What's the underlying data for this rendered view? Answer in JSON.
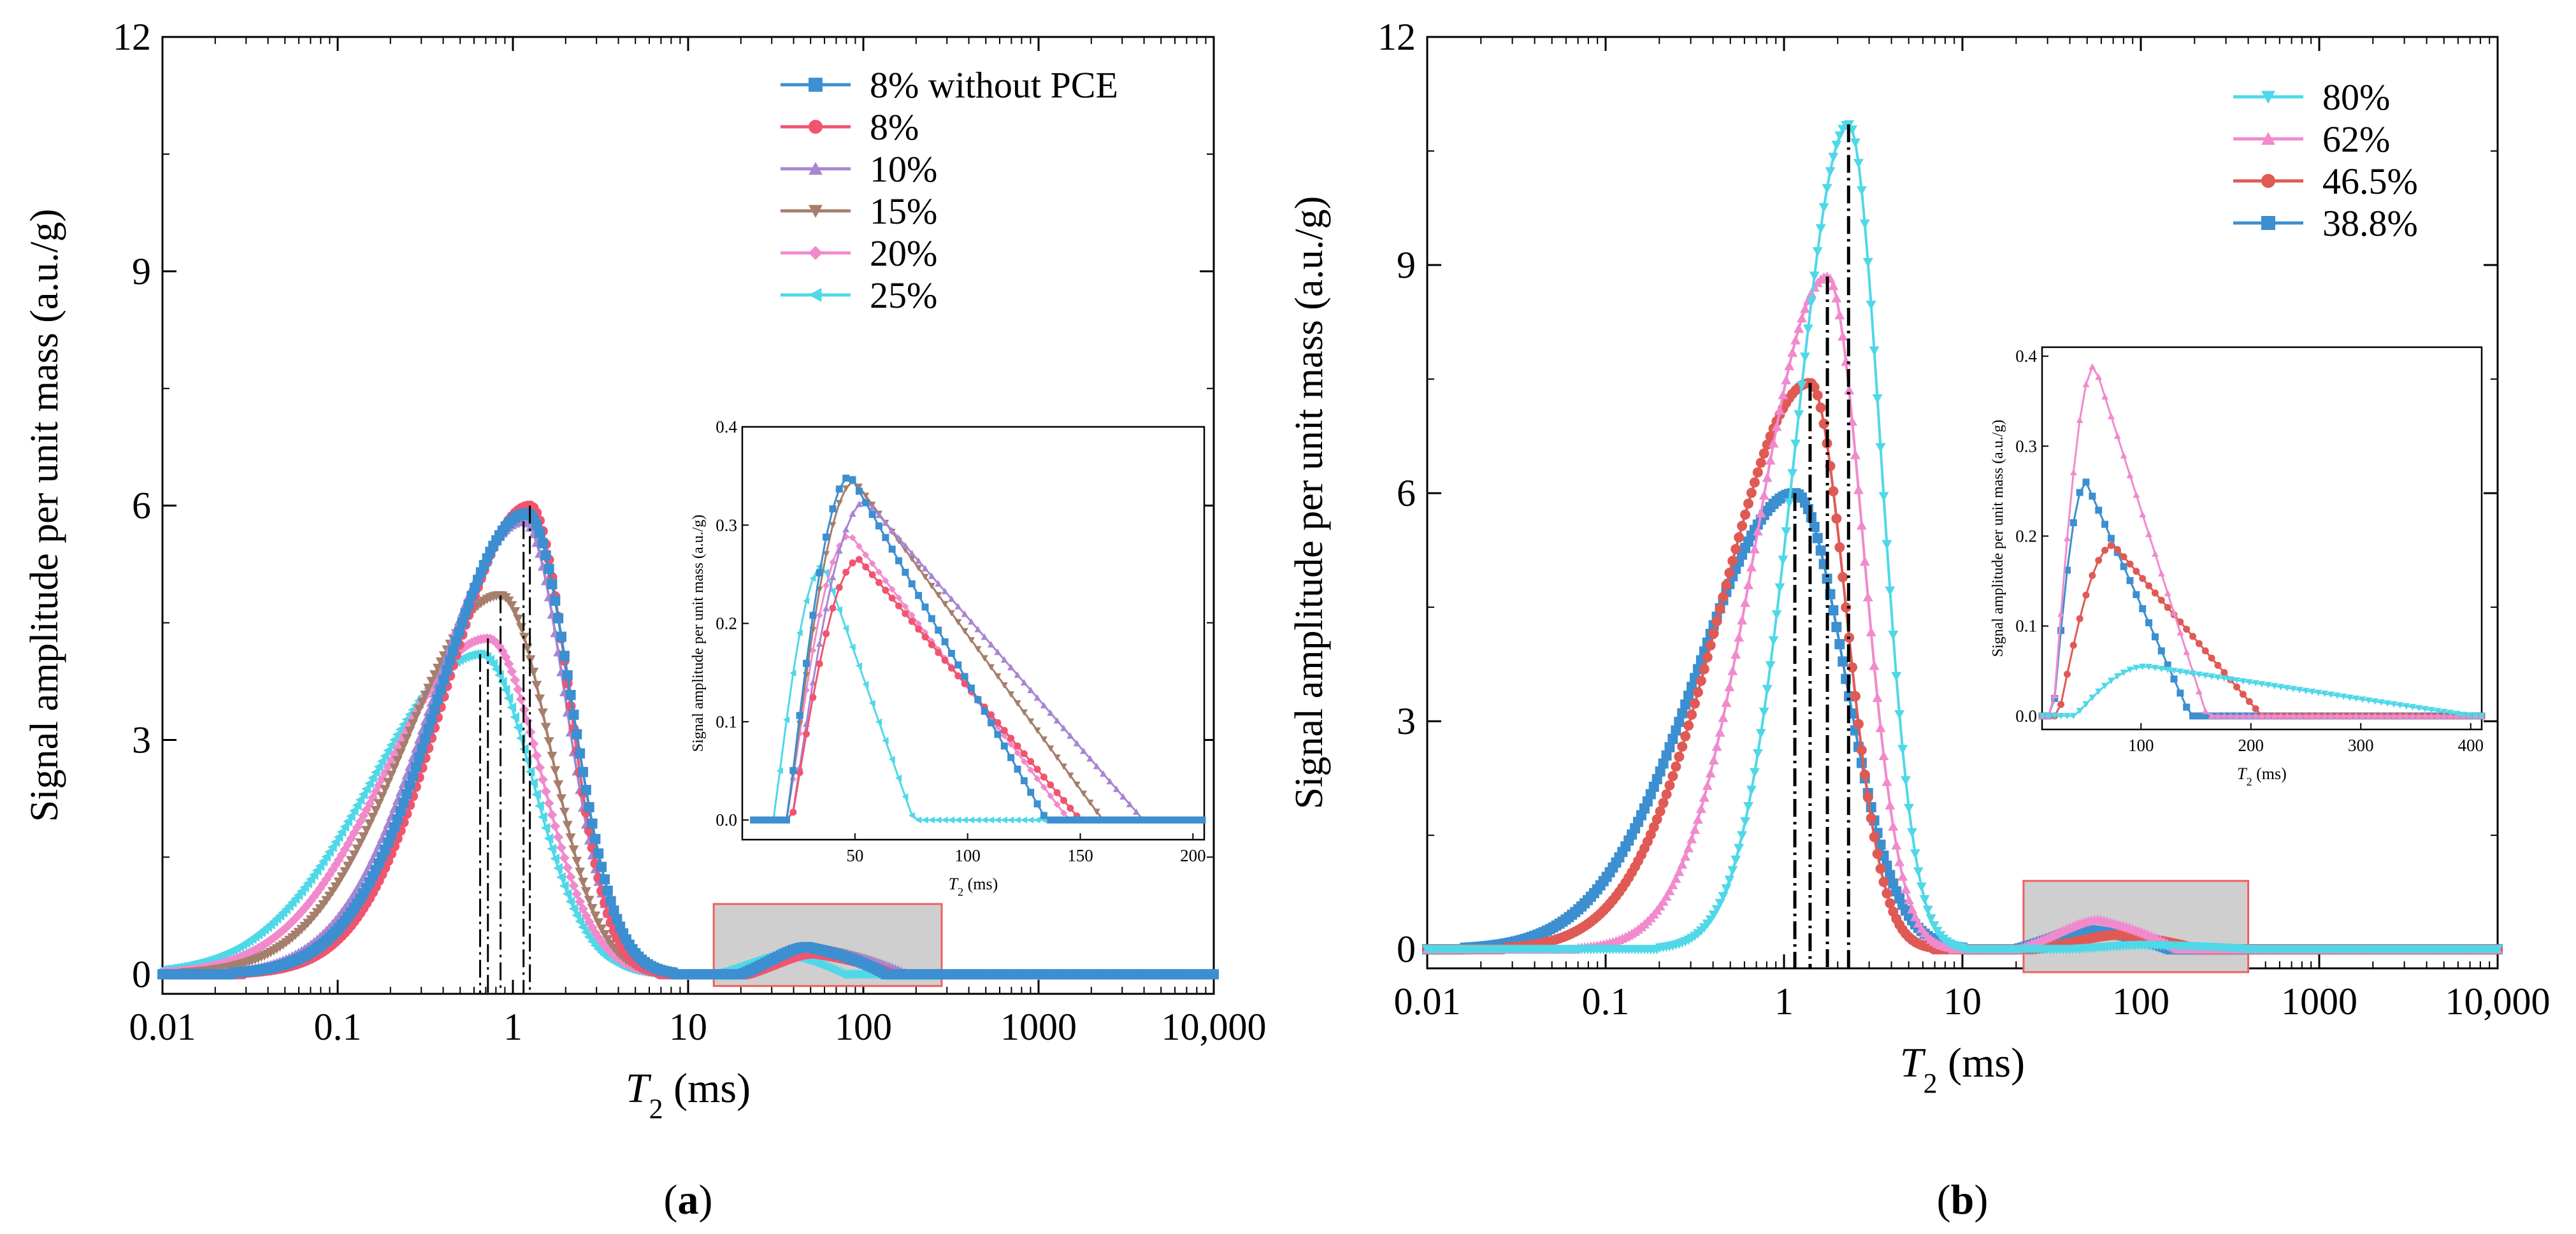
{
  "colors": {
    "blue": "#3C8FD0",
    "red": "#F0556F",
    "purple": "#A886D2",
    "brown": "#A67E6C",
    "pink": "#F08ACD",
    "cyan": "#4FD8E8",
    "red_b": "#E05A55"
  },
  "chart_data": [
    {
      "id": "a",
      "type": "line",
      "caption": "(a)",
      "caption_letter": "a",
      "xscale": "log",
      "xlim": [
        0.01,
        10000
      ],
      "ylim": [
        -0.25,
        12
      ],
      "xticks": [
        0.01,
        0.1,
        1,
        10,
        100,
        1000,
        10000
      ],
      "xtick_labels": [
        "0.01",
        "0.1",
        "1",
        "10",
        "100",
        "1000",
        "10,000"
      ],
      "yticks": [
        0,
        3,
        6,
        9,
        12
      ],
      "ytick_labels": [
        "0",
        "3",
        "6",
        "9",
        "12"
      ],
      "xlabel_var": "T",
      "xlabel_sub": "2",
      "xlabel_unit": " (ms)",
      "ylabel": "Signal amplitude per unit mass (a.u./g)",
      "legend_position": "top-right",
      "series": [
        {
          "name": "8% without PCE",
          "color": "#3C8FD0",
          "marker": "square",
          "peak_x": 1.2,
          "peak_y": 5.9,
          "wl": 0.5,
          "wr": 0.25,
          "inset_peak_x": 48,
          "inset_peak_y": 0.35,
          "inset_start": 20,
          "inset_end": 135
        },
        {
          "name": "8%",
          "color": "#F0556F",
          "marker": "circle",
          "peak_x": 1.25,
          "peak_y": 6.0,
          "wl": 0.48,
          "wr": 0.22,
          "inset_peak_x": 52,
          "inset_peak_y": 0.265,
          "inset_start": 22,
          "inset_end": 150
        },
        {
          "name": "10%",
          "color": "#A886D2",
          "marker": "triangle-up",
          "peak_x": 1.15,
          "peak_y": 5.8,
          "wl": 0.52,
          "wr": 0.24,
          "inset_peak_x": 55,
          "inset_peak_y": 0.325,
          "inset_start": 22,
          "inset_end": 178
        },
        {
          "name": "15%",
          "color": "#A67E6C",
          "marker": "triangle-down",
          "peak_x": 0.85,
          "peak_y": 4.85,
          "wl": 0.55,
          "wr": 0.28,
          "inset_peak_x": 50,
          "inset_peak_y": 0.345,
          "inset_start": 20,
          "inset_end": 160
        },
        {
          "name": "20%",
          "color": "#F08ACD",
          "marker": "diamond",
          "peak_x": 0.72,
          "peak_y": 4.3,
          "wl": 0.58,
          "wr": 0.3,
          "inset_peak_x": 48,
          "inset_peak_y": 0.29,
          "inset_start": 20,
          "inset_end": 145
        },
        {
          "name": "25%",
          "color": "#4FD8E8",
          "marker": "triangle-left",
          "peak_x": 0.65,
          "peak_y": 4.1,
          "wl": 0.62,
          "wr": 0.3,
          "inset_peak_x": 36,
          "inset_peak_y": 0.26,
          "inset_start": 14,
          "inset_end": 76
        }
      ],
      "inset": {
        "xlim": [
          0,
          205
        ],
        "ylim": [
          -0.02,
          0.4
        ],
        "xticks": [
          50,
          100,
          150,
          200
        ],
        "xtick_labels": [
          "50",
          "100",
          "150",
          "200"
        ],
        "yticks": [
          0,
          0.1,
          0.2,
          0.3,
          0.4
        ],
        "ytick_labels": [
          "0.0",
          "0.1",
          "0.2",
          "0.3",
          "0.4"
        ],
        "xlabel_var": "T",
        "xlabel_sub": "2",
        "xlabel_unit": " (ms)",
        "ylabel": "Signal amplitude per unit mass (a.u./g)",
        "highlight_range_x": [
          14,
          280
        ],
        "highlight_range_y": [
          -0.15,
          0.9
        ]
      }
    },
    {
      "id": "b",
      "type": "line",
      "caption": "(b)",
      "caption_letter": "b",
      "xscale": "log",
      "xlim": [
        0.01,
        10000
      ],
      "ylim": [
        -0.25,
        12
      ],
      "xticks": [
        0.01,
        0.1,
        1,
        10,
        100,
        1000,
        10000
      ],
      "xtick_labels": [
        "0.01",
        "0.1",
        "1",
        "10",
        "100",
        "1000",
        "10,000"
      ],
      "yticks": [
        0,
        3,
        6,
        9,
        12
      ],
      "ytick_labels": [
        "0",
        "3",
        "6",
        "9",
        "12"
      ],
      "xlabel_var": "T",
      "xlabel_sub": "2",
      "xlabel_unit": " (ms)",
      "ylabel": "Signal amplitude per unit mass (a.u./g)",
      "legend_position": "top-right",
      "series": [
        {
          "name": "80%",
          "color": "#4FD8E8",
          "marker": "triangle-down",
          "peak_x": 2.3,
          "peak_y": 10.85,
          "wl": 0.3,
          "wr": 0.18,
          "inset_peak_x": 105,
          "inset_peak_y": 0.055,
          "inset_start": 40,
          "inset_end": 400
        },
        {
          "name": "62%",
          "color": "#F08ACD",
          "marker": "triangle-up",
          "peak_x": 1.75,
          "peak_y": 8.85,
          "wl": 0.4,
          "wr": 0.2,
          "inset_peak_x": 58,
          "inset_peak_y": 0.39,
          "inset_start": 20,
          "inset_end": 160
        },
        {
          "name": "46.5%",
          "color": "#E05A55",
          "marker": "circle",
          "peak_x": 1.4,
          "peak_y": 7.45,
          "wl": 0.5,
          "wr": 0.2,
          "inset_peak_x": 75,
          "inset_peak_y": 0.19,
          "inset_start": 25,
          "inset_end": 210
        },
        {
          "name": "38.8%",
          "color": "#3C8FD0",
          "marker": "square",
          "peak_x": 1.15,
          "peak_y": 6.0,
          "wl": 0.55,
          "wr": 0.28,
          "inset_peak_x": 50,
          "inset_peak_y": 0.26,
          "inset_start": 20,
          "inset_end": 145
        }
      ],
      "inset": {
        "xlim": [
          10,
          410
        ],
        "ylim": [
          -0.015,
          0.41
        ],
        "xticks": [
          100,
          200,
          300,
          400
        ],
        "xtick_labels": [
          "100",
          "200",
          "300",
          "400"
        ],
        "yticks": [
          0,
          0.1,
          0.2,
          0.3,
          0.4
        ],
        "ytick_labels": [
          "0.0",
          "0.1",
          "0.2",
          "0.3",
          "0.4"
        ],
        "xlabel_var": "T",
        "xlabel_sub": "2",
        "xlabel_unit": " (ms)",
        "ylabel": "Signal amplitude per unit mass (a.u./g)",
        "highlight_range_x": [
          22,
          400
        ],
        "highlight_range_y": [
          -0.3,
          0.9
        ]
      }
    }
  ]
}
